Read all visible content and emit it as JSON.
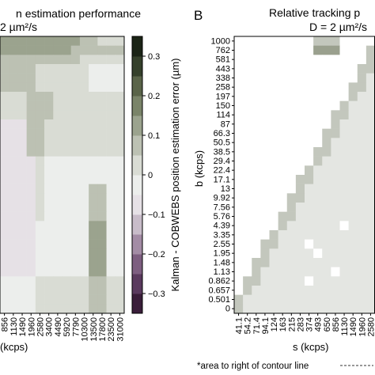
{
  "figure": {
    "panel_a": {
      "letter": "",
      "title_line1": "n estimation performance",
      "title_line2": "2 µm²/s",
      "xlabel": "(kcps)",
      "x_ticks": [
        "856",
        "1130",
        "1490",
        "1960",
        "2580",
        "3400",
        "4490",
        "5920",
        "7790",
        "10300",
        "13500",
        "17800",
        "23500",
        "31000"
      ]
    },
    "colorbar": {
      "label": "Kalman - COBWEBS position estimation error (µm)",
      "ticks": [
        "0.3",
        "0.2",
        "0.1",
        "0",
        "−0.1",
        "−0.2",
        "−0.3"
      ],
      "tick_values": [
        0.3,
        0.2,
        0.1,
        0,
        -0.1,
        -0.2,
        -0.3
      ],
      "range": [
        -0.35,
        0.35
      ],
      "colors": [
        "#3a1e3a",
        "#5a3a5e",
        "#7d5e80",
        "#a38ca5",
        "#c8bcc9",
        "#e6e1e6",
        "#eceeec",
        "#d9dcd4",
        "#bcc1b3",
        "#9ba38e",
        "#7a8469",
        "#5a6449",
        "#35402b",
        "#1b2416"
      ]
    },
    "panel_b": {
      "letter": "B",
      "title_line1": "Relative tracking p",
      "title_line2": "D = 2 µm²/s",
      "ylabel": "b (kcps)",
      "xlabel": "s (kcps)",
      "y_ticks": [
        "1000",
        "762",
        "581",
        "443",
        "338",
        "258",
        "197",
        "150",
        "114",
        "87",
        "66.3",
        "50.5",
        "38.5",
        "29.4",
        "22.4",
        "17.1",
        "13",
        "9.92",
        "7.56",
        "5.76",
        "4.39",
        "3.35",
        "2.55",
        "1.95",
        "1.48",
        "1.13",
        "0.862",
        "0.657",
        "0.501",
        "0"
      ],
      "x_ticks": [
        "41.1",
        "54.2",
        "71.4",
        "94.1",
        "124",
        "163",
        "215",
        "283",
        "374",
        "493",
        "650",
        "856",
        "1130",
        "1490",
        "1960",
        "2580"
      ]
    },
    "footnote": "*area to right of contour line"
  },
  "chart_data": [
    {
      "type": "heatmap",
      "title": "n estimation performance 2 µm²/s",
      "xlabel": "(kcps)",
      "x_categories": [
        "856",
        "1130",
        "1490",
        "1960",
        "2580",
        "3400",
        "4490",
        "5920",
        "7790",
        "10300",
        "13500",
        "17800",
        "23500",
        "31000"
      ],
      "color_range": [
        -0.35,
        0.35
      ],
      "note": "Mostly light gray (~0) with positive (green-gray) regions in top rows and columns around 13500-23500 kcps."
    },
    {
      "type": "heatmap",
      "title": "Relative tracking p D = 2 µm²/s",
      "xlabel": "s (kcps)",
      "ylabel": "b (kcps)",
      "x_categories": [
        "41.1",
        "54.2",
        "71.4",
        "94.1",
        "124",
        "163",
        "215",
        "283",
        "374",
        "493",
        "650",
        "856",
        "1130",
        "1490",
        "1960",
        "2580"
      ],
      "y_categories": [
        "1000",
        "762",
        "581",
        "443",
        "338",
        "258",
        "197",
        "150",
        "114",
        "87",
        "66.3",
        "50.5",
        "38.5",
        "29.4",
        "22.4",
        "17.1",
        "13",
        "9.92",
        "7.56",
        "5.76",
        "4.39",
        "3.35",
        "2.55",
        "1.95",
        "1.48",
        "1.13",
        "0.862",
        "0.657",
        "0.501",
        "0"
      ],
      "note": "White region upper-left, gray diagonal band, light gray lower-right with scattered white cells."
    }
  ]
}
